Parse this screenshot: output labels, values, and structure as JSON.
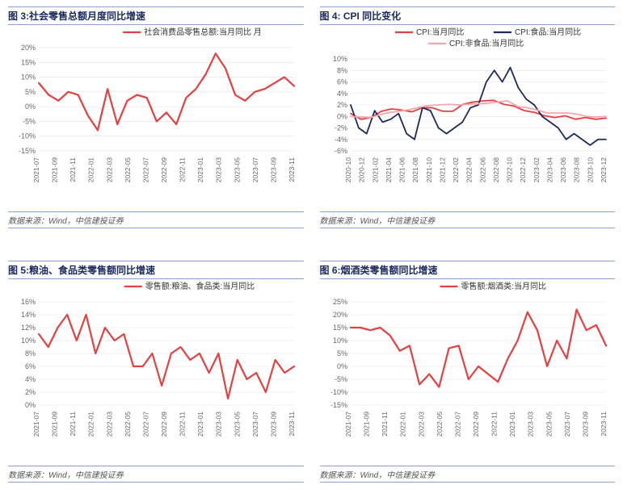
{
  "source_text": "数据来源：Wind，中信建投证券",
  "colors": {
    "red": "#e63f3f",
    "navy": "#1a2a5c",
    "pink": "#f4a6b0",
    "grid": "#e0e0e0",
    "axis_text": "#666666",
    "bg": "#ffffff"
  },
  "chart3": {
    "title": "图 3:社会零售总额月度同比增速",
    "legend": [
      "社会消费品零售总额:当月同比 月"
    ],
    "series_colors": [
      "#e63f3f"
    ],
    "ylim": [
      -15,
      20
    ],
    "ytick_step": 5,
    "ylabels": [
      "-15%",
      "-10%",
      "-5%",
      "0%",
      "5%",
      "10%",
      "15%",
      "20%"
    ],
    "x": [
      "2021-07",
      "2021-09",
      "2021-11",
      "2022-01",
      "2022-03",
      "2022-05",
      "2022-07",
      "2022-09",
      "2022-11",
      "2023-01",
      "2023-03",
      "2023-05",
      "2023-07",
      "2023-09",
      "2023-11"
    ],
    "y": [
      [
        8,
        4,
        2,
        5,
        4,
        -3,
        -8,
        6,
        -6,
        2,
        4,
        3,
        -5,
        -2,
        -6,
        3,
        6,
        11,
        18,
        13,
        4,
        2,
        5,
        6,
        8,
        10,
        7
      ]
    ],
    "line_width": 2.2
  },
  "chart4": {
    "title": "图 4: CPI 同比变化",
    "legend": [
      "CPI:当月同比",
      "CPI:食品:当月同比",
      "CPI:非食品:当月同比"
    ],
    "series_colors": [
      "#e63f3f",
      "#1a2a5c",
      "#f4a6b0"
    ],
    "ylim": [
      -6,
      10
    ],
    "ytick_step": 2,
    "ylabels": [
      "-6%",
      "-4%",
      "-2%",
      "0%",
      "2%",
      "4%",
      "6%",
      "8%",
      "10%"
    ],
    "x": [
      "2020-10",
      "2020-12",
      "2021-02",
      "2021-04",
      "2021-06",
      "2021-08",
      "2021-10",
      "2021-12",
      "2022-02",
      "2022-04",
      "2022-06",
      "2022-08",
      "2022-10",
      "2022-12",
      "2023-02",
      "2023-04",
      "2023-06",
      "2023-08",
      "2023-10",
      "2023-12"
    ],
    "y": [
      [
        0.5,
        -0.5,
        -0.2,
        0.9,
        1.3,
        1.1,
        0.8,
        1.5,
        1.5,
        0.9,
        0.9,
        2.1,
        2.5,
        2.7,
        2.8,
        2.1,
        1.8,
        1.0,
        0.7,
        0.1,
        -0.2,
        0.1,
        -0.5,
        -0.2,
        -0.5,
        -0.3
      ],
      [
        2,
        -2,
        -3,
        1,
        -1,
        -0.5,
        0.5,
        -3,
        -4,
        1.5,
        1,
        -2,
        -3,
        -2,
        -1,
        1.5,
        2,
        6,
        8,
        6,
        8.5,
        5,
        3,
        2,
        0,
        -1,
        -2,
        -4,
        -3,
        -4,
        -5,
        -4,
        -4
      ],
      [
        0,
        -0.1,
        -0.2,
        0.3,
        0.7,
        0.9,
        1.2,
        1.6,
        1.9,
        2.0,
        2.1,
        2.0,
        2.1,
        2.2,
        2.3,
        2.5,
        2.7,
        1.7,
        1.5,
        1.1,
        0.6,
        0.6,
        0.6,
        0.4,
        0,
        -0.1,
        0
      ]
    ],
    "line_width": 1.8
  },
  "chart5": {
    "title": "图 5:粮油、食品类零售额同比增速",
    "legend": [
      "零售额:粮油、食品类:当月同比"
    ],
    "series_colors": [
      "#e63f3f"
    ],
    "ylim": [
      0,
      16
    ],
    "ytick_step": 2,
    "ylabels": [
      "0%",
      "2%",
      "4%",
      "6%",
      "8%",
      "10%",
      "12%",
      "14%",
      "16%"
    ],
    "x": [
      "2021-07",
      "2021-09",
      "2021-11",
      "2022-01",
      "2022-03",
      "2022-05",
      "2022-07",
      "2022-09",
      "2022-11",
      "2023-01",
      "2023-03",
      "2023-05",
      "2023-07",
      "2023-09",
      "2023-11"
    ],
    "y": [
      [
        11,
        9,
        12,
        14,
        10,
        14,
        8,
        12,
        10,
        11,
        6,
        6,
        8,
        3,
        8,
        9,
        7,
        8,
        5,
        8,
        1,
        7,
        4,
        5,
        2,
        7,
        5,
        6
      ]
    ],
    "line_width": 2.2
  },
  "chart6": {
    "title": "图 6:烟酒类零售额同比增速",
    "legend": [
      "零售额:烟酒类:当月同比"
    ],
    "series_colors": [
      "#e63f3f"
    ],
    "ylim": [
      -15,
      25
    ],
    "ytick_step": 5,
    "ylabels": [
      "-15%",
      "-10%",
      "-5%",
      "0%",
      "5%",
      "10%",
      "15%",
      "20%",
      "25%"
    ],
    "x": [
      "2021-07",
      "2021-09",
      "2021-11",
      "2022-01",
      "2022-03",
      "2022-05",
      "2022-07",
      "2022-09",
      "2022-11",
      "2023-01",
      "2023-03",
      "2023-05",
      "2023-07",
      "2023-09",
      "2023-11"
    ],
    "y": [
      [
        15,
        15,
        14,
        15,
        12,
        6,
        8,
        -7,
        -3,
        -8,
        7,
        8,
        -5,
        0,
        -3,
        -6,
        3,
        10,
        21,
        14,
        0,
        10,
        3,
        22,
        14,
        16,
        8
      ]
    ],
    "line_width": 2.2
  }
}
